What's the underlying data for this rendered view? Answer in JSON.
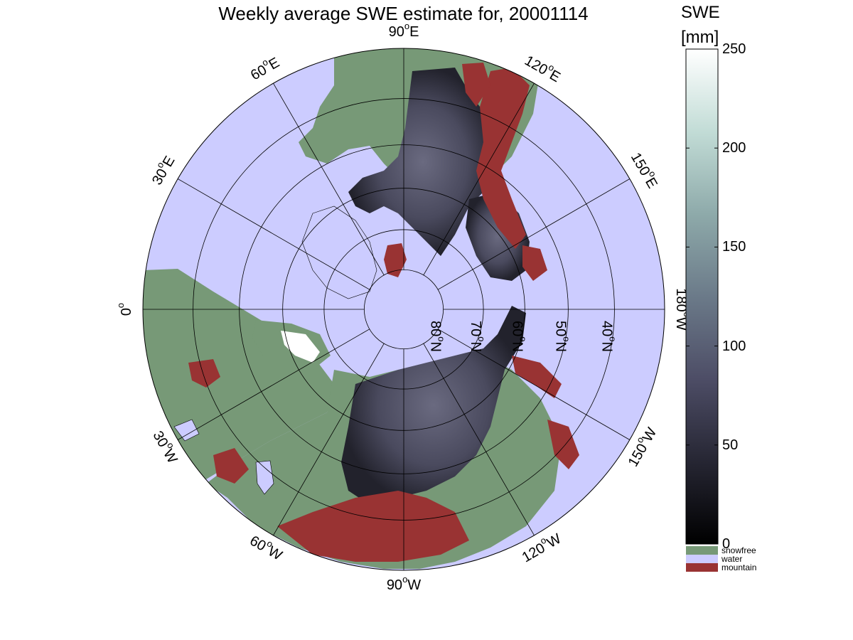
{
  "title": "Weekly average SWE estimate for, 20001114",
  "map": {
    "projection": "north polar stereographic",
    "longitude_labels": [
      {
        "text": "90°W",
        "main": "90",
        "deg": "o",
        "dir": "W",
        "lon": -90
      },
      {
        "text": "120°W",
        "main": "120",
        "deg": "o",
        "dir": "W",
        "lon": -120
      },
      {
        "text": "150°W",
        "main": "150",
        "deg": "o",
        "dir": "W",
        "lon": -150
      },
      {
        "text": "180°W",
        "main": "180",
        "deg": "o",
        "dir": "W",
        "lon": 180
      },
      {
        "text": "150°E",
        "main": "150",
        "deg": "o",
        "dir": "E",
        "lon": 150
      },
      {
        "text": "120°E",
        "main": "120",
        "deg": "o",
        "dir": "E",
        "lon": 120
      },
      {
        "text": "90°E",
        "main": "90",
        "deg": "o",
        "dir": "E",
        "lon": 90
      },
      {
        "text": "60°E",
        "main": "60",
        "deg": "o",
        "dir": "E",
        "lon": 60
      },
      {
        "text": "30°E",
        "main": "30",
        "deg": "o",
        "dir": "E",
        "lon": 30
      },
      {
        "text": "0°",
        "main": "0",
        "deg": "o",
        "dir": "",
        "lon": 0
      },
      {
        "text": "30°W",
        "main": "30",
        "deg": "o",
        "dir": "W",
        "lon": -30
      },
      {
        "text": "60°W",
        "main": "60",
        "deg": "o",
        "dir": "W",
        "lon": -60
      }
    ],
    "latitude_labels": [
      {
        "text": "80°N",
        "main": "80",
        "deg": "o",
        "dir": "N",
        "lat": 80
      },
      {
        "text": "70°N",
        "main": "70",
        "deg": "o",
        "dir": "N",
        "lat": 70
      },
      {
        "text": "60°N",
        "main": "60",
        "deg": "o",
        "dir": "N",
        "lat": 60
      },
      {
        "text": "50°N",
        "main": "50",
        "deg": "o",
        "dir": "N",
        "lat": 50
      },
      {
        "text": "40°N",
        "main": "40",
        "deg": "o",
        "dir": "N",
        "lat": 40
      }
    ],
    "colors": {
      "water": "#ccccff",
      "snowfree": "#779977",
      "mountain": "#993333",
      "snow_low": "#1c1c26",
      "snow_mid": "#555566"
    }
  },
  "colorbar": {
    "title_line1": "SWE",
    "title_line2": "[mm]",
    "ticks": [
      "0",
      "50",
      "100",
      "150",
      "200",
      "250"
    ],
    "tick_values": [
      0,
      50,
      100,
      150,
      200,
      250
    ],
    "range": [
      0,
      250
    ],
    "colors": [
      "#000000",
      "#262633",
      "#4d4d66",
      "#6b7a89",
      "#8eaaaa",
      "#c2dcd6",
      "#ffffff"
    ],
    "categories": [
      {
        "label": "snowfree",
        "color": "#779977"
      },
      {
        "label": "water",
        "color": "#ccccff"
      },
      {
        "label": "mountain",
        "color": "#993333"
      }
    ]
  }
}
